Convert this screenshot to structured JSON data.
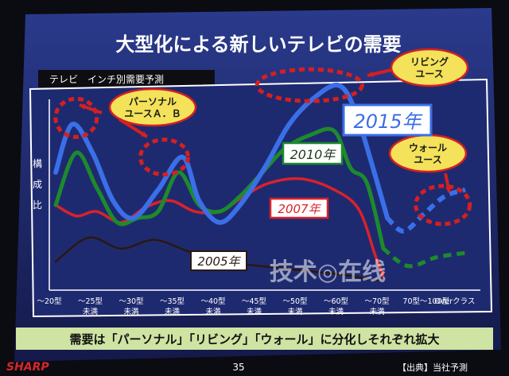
{
  "slide": {
    "title": "大型化による新しいテレビの需要",
    "subtitle": "テレビ　インチ別需要予測",
    "summary": "需要は「パーソナル」「リビング」「ウォール」に分化しそれぞれ拡大",
    "page_number": "35",
    "source": "【出典】当社予測",
    "brand": "SHARP",
    "watermark": "技术◎在线"
  },
  "colors": {
    "background": "#1f2d73",
    "frame": "#ffffff",
    "title": "#ffffff",
    "summary_bg": "#cfe3a3",
    "bubble_fill": "#f3e25a",
    "annotation_dash": "#d42020",
    "series_2005": "#2a1810",
    "series_2007": "#d9222a",
    "series_2010": "#1d8a2c",
    "series_2015": "#3a6fe8"
  },
  "chart_data": {
    "type": "line",
    "ylabel": "構成比",
    "categories": [
      "～20型",
      "～25型 未満",
      "～30型 未満",
      "～35型 未満",
      "～40型 未満",
      "～45型 未満",
      "～50型 未満",
      "～60型 未満",
      "～70型 未満",
      "70型～100型",
      "Overクラス"
    ],
    "x": [
      0,
      1,
      2,
      3,
      4,
      5,
      6,
      7,
      8,
      9,
      10
    ],
    "ylim": [
      0,
      100
    ],
    "grid": false,
    "series": [
      {
        "name": "2005年",
        "color_key": "series_2005",
        "x": [
          0,
          0.8,
          1.6,
          2.4,
          3.2,
          4.0,
          5.0,
          6.0,
          7.0,
          7.6,
          8.0
        ],
        "values": [
          12,
          23,
          18,
          22,
          17,
          12,
          10,
          8,
          6,
          4,
          3
        ],
        "dashed_from_x": 7.3
      },
      {
        "name": "2007年",
        "color_key": "series_2007",
        "x": [
          0,
          0.5,
          1.0,
          1.6,
          2.2,
          2.8,
          3.4,
          4.0,
          4.6,
          5.2,
          6.0,
          6.8,
          7.4,
          7.8,
          8.0
        ],
        "values": [
          38,
          33,
          35,
          30,
          37,
          40,
          35,
          35,
          42,
          48,
          50,
          45,
          36,
          15,
          5
        ]
      },
      {
        "name": "2010年",
        "color_key": "series_2010",
        "x": [
          0,
          0.5,
          1.0,
          1.5,
          2.0,
          2.5,
          3.0,
          3.5,
          4.0,
          4.5,
          5.0,
          5.6,
          6.2,
          6.8,
          7.2,
          7.6,
          8.0,
          8.6,
          9.3,
          10.0
        ],
        "values": [
          38,
          62,
          46,
          30,
          32,
          35,
          53,
          38,
          35,
          42,
          52,
          64,
          70,
          72,
          55,
          48,
          18,
          10,
          14,
          16
        ],
        "dashed_from_x": 8.0
      },
      {
        "name": "2015年",
        "color_key": "series_2015",
        "x": [
          0,
          0.4,
          0.9,
          1.4,
          1.9,
          2.5,
          3.1,
          3.5,
          4.0,
          4.5,
          5.1,
          5.7,
          6.3,
          6.9,
          7.3,
          7.7,
          8.1,
          8.5,
          9.0,
          9.5,
          10.0
        ],
        "values": [
          53,
          75,
          62,
          40,
          32,
          45,
          60,
          40,
          30,
          38,
          55,
          75,
          87,
          93,
          82,
          58,
          32,
          26,
          34,
          42,
          45
        ],
        "dashed_from_x": 8.1
      }
    ],
    "annotations": [
      {
        "text": "パーソナル\nユースＡ．Ｂ",
        "type": "bubble"
      },
      {
        "text": "リビング\nユース",
        "type": "bubble"
      },
      {
        "text": "ウォール\nユース",
        "type": "bubble"
      }
    ]
  }
}
